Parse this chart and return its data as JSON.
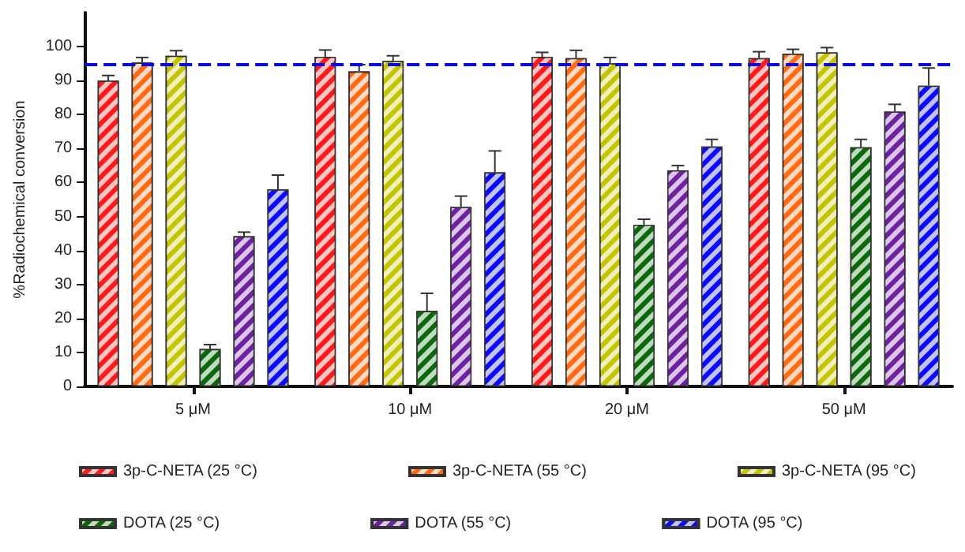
{
  "chart_data": {
    "type": "bar",
    "ylabel": "%Radiochemical conversion",
    "categories": [
      "5 μM",
      "10 μM",
      "20 μM",
      "50 μM"
    ],
    "series": [
      {
        "name": "3p-C-NETA (25 °C)",
        "color": "#ff1a1a",
        "values": [
          90,
          97,
          97,
          96.6
        ],
        "errors": [
          1.5,
          2,
          1.3,
          1.9
        ]
      },
      {
        "name": "3p-C-NETA (55 °C)",
        "color": "#ff6a13",
        "values": [
          95.3,
          92.7,
          96.6,
          97.9
        ],
        "errors": [
          1.5,
          2,
          2.3,
          1.3
        ]
      },
      {
        "name": "3p-C-NETA (95 °C)",
        "color": "#c4c400",
        "values": [
          97.3,
          95.8,
          95.1,
          98.3
        ],
        "errors": [
          1.5,
          1.5,
          1.7,
          1.4
        ]
      },
      {
        "name": "DOTA (25 °C)",
        "color": "#0a6a0a",
        "values": [
          11,
          22.2,
          47.6,
          70.4
        ],
        "errors": [
          1.3,
          5.2,
          1.6,
          2.3
        ]
      },
      {
        "name": "DOTA (55 °C)",
        "color": "#7020a0",
        "values": [
          44.2,
          52.8,
          63.6,
          80.9
        ],
        "errors": [
          1.2,
          3.2,
          1.4,
          2.1
        ]
      },
      {
        "name": "DOTA (95 °C)",
        "color": "#0a0aff",
        "values": [
          58,
          63,
          70.6,
          88.5
        ],
        "errors": [
          4.2,
          6.3,
          2.1,
          5.2
        ]
      }
    ],
    "ylim": [
      0,
      110
    ],
    "yticks": [
      0,
      10,
      20,
      30,
      40,
      50,
      60,
      70,
      80,
      90,
      100
    ],
    "ref_lines": [
      {
        "axis": "y",
        "value": 95,
        "color": "#0a0add",
        "line_style": "dashed"
      }
    ],
    "grid": false,
    "legend": "bottom"
  }
}
